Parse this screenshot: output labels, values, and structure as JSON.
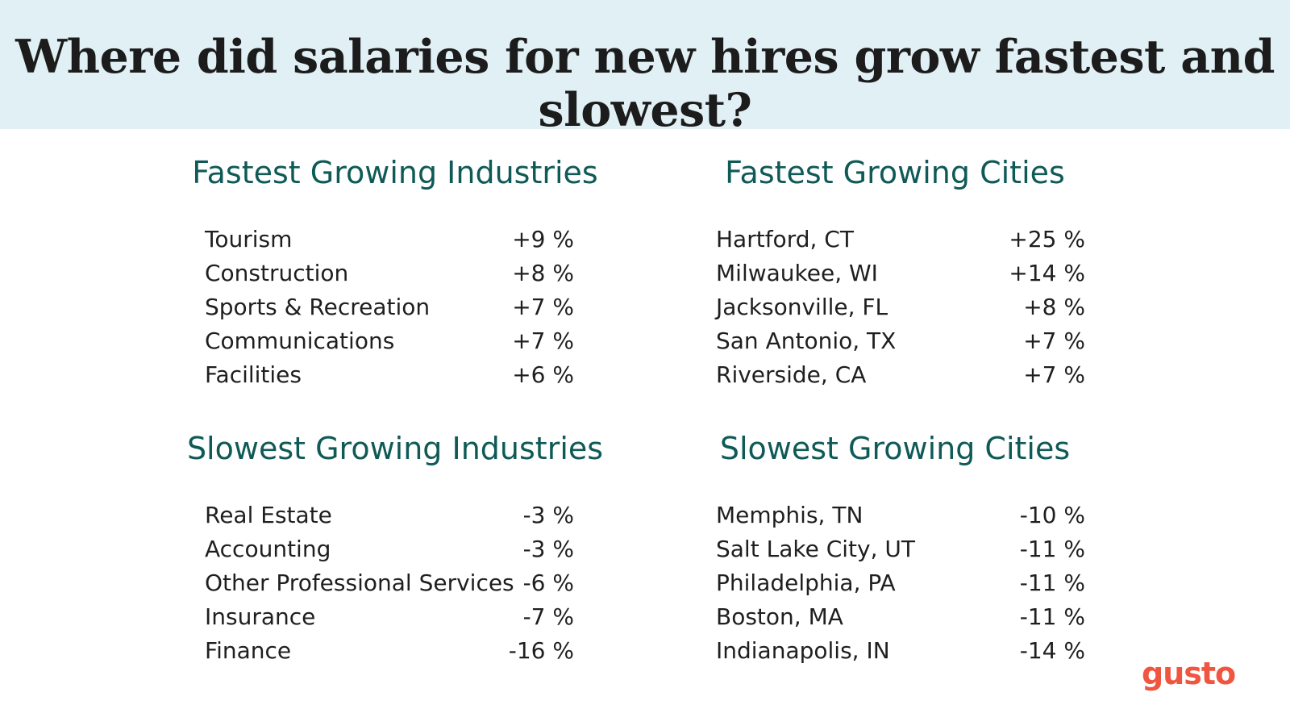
{
  "title": "Where did salaries for new hires grow fastest and slowest?",
  "colors": {
    "banner_bg": "#e1f0f5",
    "heading": "#0f5a57",
    "text": "#1f1f1f",
    "logo": "#f0553f"
  },
  "sections": {
    "fastest_industries": {
      "heading": "Fastest Growing Industries",
      "rows": [
        {
          "label": "Tourism",
          "value": "+9 %"
        },
        {
          "label": "Construction",
          "value": "+8 %"
        },
        {
          "label": "Sports & Recreation",
          "value": "+7 %"
        },
        {
          "label": "Communications",
          "value": "+7 %"
        },
        {
          "label": "Facilities",
          "value": "+6 %"
        }
      ]
    },
    "fastest_cities": {
      "heading": "Fastest Growing Cities",
      "rows": [
        {
          "label": "Hartford, CT",
          "value": "+25 %"
        },
        {
          "label": "Milwaukee, WI",
          "value": "+14 %"
        },
        {
          "label": "Jacksonville, FL",
          "value": "+8 %"
        },
        {
          "label": "San Antonio, TX",
          "value": "+7 %"
        },
        {
          "label": "Riverside, CA",
          "value": "+7 %"
        }
      ]
    },
    "slowest_industries": {
      "heading": "Slowest Growing Industries",
      "rows": [
        {
          "label": "Real Estate",
          "value": "-3 %"
        },
        {
          "label": "Accounting",
          "value": "-3 %"
        },
        {
          "label": "Other Professional Services",
          "value": "-6 %"
        },
        {
          "label": "Insurance",
          "value": "-7 %"
        },
        {
          "label": "Finance",
          "value": "-16 %"
        }
      ]
    },
    "slowest_cities": {
      "heading": "Slowest Growing Cities",
      "rows": [
        {
          "label": "Memphis, TN",
          "value": "-10 %"
        },
        {
          "label": "Salt Lake City, UT",
          "value": "-11 %"
        },
        {
          "label": "Philadelphia, PA",
          "value": "-11 %"
        },
        {
          "label": "Boston, MA",
          "value": "-11 %"
        },
        {
          "label": "Indianapolis, IN",
          "value": "-14 %"
        }
      ]
    }
  },
  "logo": {
    "text": "gusto"
  }
}
